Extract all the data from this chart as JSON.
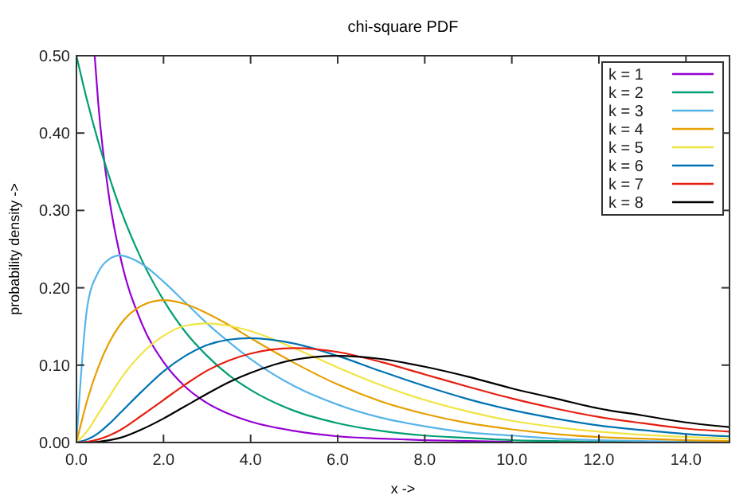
{
  "chart_data": {
    "type": "line",
    "title": "chi-square PDF",
    "xlabel": "x ->",
    "ylabel": "probability density ->",
    "x": [
      0,
      0.25,
      0.5,
      0.75,
      1,
      1.5,
      2,
      2.5,
      3,
      3.5,
      4,
      5,
      6,
      7,
      8,
      9,
      10,
      11,
      12,
      13,
      14,
      15
    ],
    "series": [
      {
        "name": "k = 1",
        "color": "#9400d3",
        "x": [
          0.42,
          0.5,
          0.75,
          1,
          1.5,
          2,
          2.5,
          3,
          3.5,
          4,
          5,
          6,
          7,
          8,
          9,
          10
        ],
        "values": [
          0.499,
          0.439,
          0.317,
          0.242,
          0.154,
          0.104,
          0.072,
          0.051,
          0.037,
          0.027,
          0.015,
          0.008,
          0.005,
          0.003,
          0.002,
          0.001
        ]
      },
      {
        "name": "k = 2",
        "color": "#009e73",
        "values": [
          0.5,
          0.441,
          0.389,
          0.344,
          0.303,
          0.236,
          0.184,
          0.143,
          0.112,
          0.087,
          0.068,
          0.041,
          0.025,
          0.015,
          0.009,
          0.006,
          0.003,
          0.002,
          0.001,
          0.001,
          0,
          0
        ]
      },
      {
        "name": "k = 3",
        "color": "#56b4e9",
        "values": [
          0,
          0.176,
          0.22,
          0.237,
          0.242,
          0.231,
          0.208,
          0.181,
          0.154,
          0.13,
          0.108,
          0.073,
          0.049,
          0.032,
          0.021,
          0.013,
          0.009,
          0.005,
          0.003,
          0.002,
          0.001,
          0.001
        ]
      },
      {
        "name": "k = 4",
        "color": "#e69f00",
        "values": [
          0,
          0.055,
          0.097,
          0.129,
          0.152,
          0.177,
          0.184,
          0.179,
          0.167,
          0.152,
          0.135,
          0.103,
          0.075,
          0.053,
          0.037,
          0.025,
          0.017,
          0.011,
          0.007,
          0.005,
          0.003,
          0.002
        ]
      },
      {
        "name": "k = 5",
        "color": "#f0e442",
        "values": [
          0,
          0.015,
          0.037,
          0.059,
          0.081,
          0.115,
          0.138,
          0.151,
          0.154,
          0.151,
          0.144,
          0.122,
          0.097,
          0.074,
          0.055,
          0.04,
          0.028,
          0.02,
          0.014,
          0.01,
          0.007,
          0.005
        ]
      },
      {
        "name": "k = 6",
        "color": "#0072b2",
        "values": [
          0,
          0.004,
          0.012,
          0.024,
          0.038,
          0.066,
          0.092,
          0.112,
          0.126,
          0.133,
          0.135,
          0.128,
          0.112,
          0.092,
          0.073,
          0.056,
          0.042,
          0.031,
          0.022,
          0.016,
          0.011,
          0.008
        ]
      },
      {
        "name": "k = 7",
        "color": "#e51e10",
        "values": [
          0,
          0.001,
          0.004,
          0.009,
          0.016,
          0.035,
          0.055,
          0.075,
          0.093,
          0.106,
          0.115,
          0.122,
          0.117,
          0.104,
          0.088,
          0.072,
          0.057,
          0.044,
          0.033,
          0.025,
          0.018,
          0.014
        ]
      },
      {
        "name": "k = 8",
        "color": "#000000",
        "values": [
          0,
          0,
          0.001,
          0.003,
          0.006,
          0.017,
          0.031,
          0.047,
          0.063,
          0.078,
          0.09,
          0.107,
          0.112,
          0.108,
          0.098,
          0.085,
          0.07,
          0.057,
          0.044,
          0.035,
          0.026,
          0.02
        ]
      }
    ],
    "xlim": [
      0,
      15
    ],
    "ylim": [
      0,
      0.5
    ],
    "xticks": [
      {
        "value": 0,
        "label": "0.0"
      },
      {
        "value": 2,
        "label": "2.0"
      },
      {
        "value": 4,
        "label": "4.0"
      },
      {
        "value": 6,
        "label": "6.0"
      },
      {
        "value": 8,
        "label": "8.0"
      },
      {
        "value": 10,
        "label": "10.0"
      },
      {
        "value": 12,
        "label": "12.0"
      },
      {
        "value": 14,
        "label": "14.0"
      }
    ],
    "yticks": [
      {
        "value": 0,
        "label": "0.00"
      },
      {
        "value": 0.1,
        "label": "0.10"
      },
      {
        "value": 0.2,
        "label": "0.20"
      },
      {
        "value": 0.3,
        "label": "0.30"
      },
      {
        "value": 0.4,
        "label": "0.40"
      },
      {
        "value": 0.5,
        "label": "0.50"
      }
    ],
    "grid": false,
    "legend": "top right"
  }
}
